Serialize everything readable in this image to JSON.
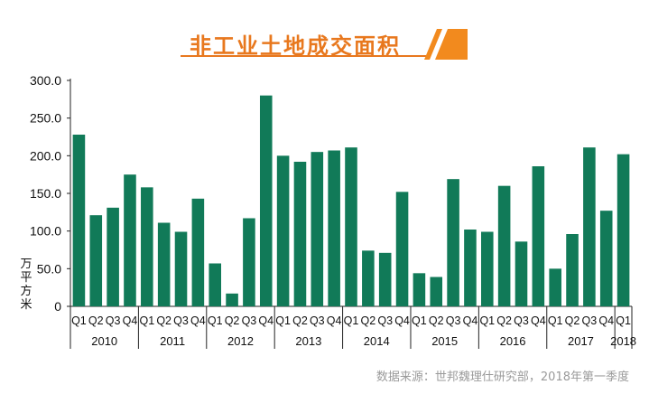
{
  "title": "非工业土地成交面积",
  "source": "数据来源：世邦魏理仕研究部，2018年第一季度",
  "colors": {
    "bar": "#117a58",
    "title": "#e8781e",
    "axis": "#222222",
    "source": "#9a9a9a"
  },
  "chart_data": {
    "type": "bar",
    "title": "非工业土地成交面积",
    "ylabel": "万平方米",
    "xlabel": "",
    "ylim": [
      0,
      300
    ],
    "yticks": [
      "0",
      "50.0",
      "100.0",
      "150.0",
      "200.0",
      "250.0",
      "300.0"
    ],
    "grid": false,
    "categories": [
      "Q1",
      "Q2",
      "Q3",
      "Q4",
      "Q1",
      "Q2",
      "Q3",
      "Q4",
      "Q1",
      "Q2",
      "Q3",
      "Q4",
      "Q1",
      "Q2",
      "Q3",
      "Q4",
      "Q1",
      "Q2",
      "Q3",
      "Q4",
      "Q1",
      "Q2",
      "Q3",
      "Q4",
      "Q1",
      "Q2",
      "Q3",
      "Q4",
      "Q1",
      "Q2",
      "Q3",
      "Q4",
      "Q1"
    ],
    "values": [
      228,
      121,
      131,
      175,
      158,
      111,
      99,
      143,
      57,
      17,
      117,
      280,
      200,
      192,
      205,
      207,
      211,
      74,
      71,
      152,
      44,
      39,
      169,
      102,
      99,
      160,
      86,
      186,
      50,
      96,
      211,
      127,
      202
    ],
    "year_groups": [
      {
        "label": "2010",
        "count": 4
      },
      {
        "label": "2011",
        "count": 4
      },
      {
        "label": "2012",
        "count": 4
      },
      {
        "label": "2013",
        "count": 4
      },
      {
        "label": "2014",
        "count": 4
      },
      {
        "label": "2015",
        "count": 4
      },
      {
        "label": "2016",
        "count": 4
      },
      {
        "label": "2017",
        "count": 4
      },
      {
        "label": "2018",
        "count": 1
      }
    ]
  }
}
